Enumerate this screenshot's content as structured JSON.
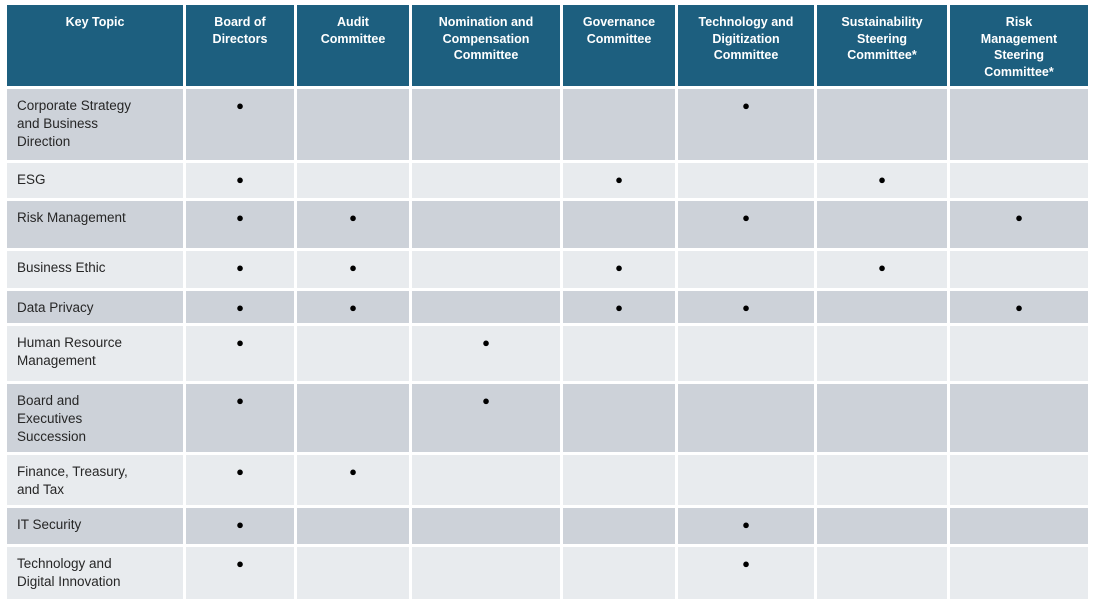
{
  "colors": {
    "header_bg": "#1D5F7F",
    "header_text": "#FFFFFF",
    "row_dark": "#CDD2D9",
    "row_light": "#E8EBEE",
    "text": "#262626",
    "bullet": "#000000"
  },
  "table": {
    "bullet_glyph": "●",
    "columns": [
      {
        "label": "Key Topic"
      },
      {
        "label": "Board of\nDirectors"
      },
      {
        "label": "Audit\nCommittee"
      },
      {
        "label": "Nomination and\nCompensation\nCommittee"
      },
      {
        "label": "Governance\nCommittee"
      },
      {
        "label": "Technology and\nDigitization\nCommittee"
      },
      {
        "label": "Sustainability\nSteering\nCommittee*"
      },
      {
        "label": "Risk\nManagement\nSteering\nCommittee*"
      }
    ],
    "rows": [
      {
        "topic": "Corporate Strategy\nand Business\nDirection",
        "marks": [
          1,
          0,
          0,
          0,
          1,
          0,
          0
        ]
      },
      {
        "topic": "ESG",
        "marks": [
          1,
          0,
          0,
          1,
          0,
          1,
          0
        ]
      },
      {
        "topic": "Risk Management",
        "marks": [
          1,
          1,
          0,
          0,
          1,
          0,
          1
        ]
      },
      {
        "topic": "Business Ethic",
        "marks": [
          1,
          1,
          0,
          1,
          0,
          1,
          0
        ]
      },
      {
        "topic": "Data Privacy",
        "marks": [
          1,
          1,
          0,
          1,
          1,
          0,
          1
        ]
      },
      {
        "topic": "Human Resource\nManagement",
        "marks": [
          1,
          0,
          1,
          0,
          0,
          0,
          0
        ]
      },
      {
        "topic": "Board and\nExecutives\nSuccession",
        "marks": [
          1,
          0,
          1,
          0,
          0,
          0,
          0
        ]
      },
      {
        "topic": "Finance, Treasury,\nand Tax",
        "marks": [
          1,
          1,
          0,
          0,
          0,
          0,
          0
        ]
      },
      {
        "topic": "IT Security",
        "marks": [
          1,
          0,
          0,
          0,
          1,
          0,
          0
        ]
      },
      {
        "topic": "Technology and\nDigital Innovation",
        "marks": [
          1,
          0,
          0,
          0,
          1,
          0,
          0
        ]
      }
    ]
  }
}
